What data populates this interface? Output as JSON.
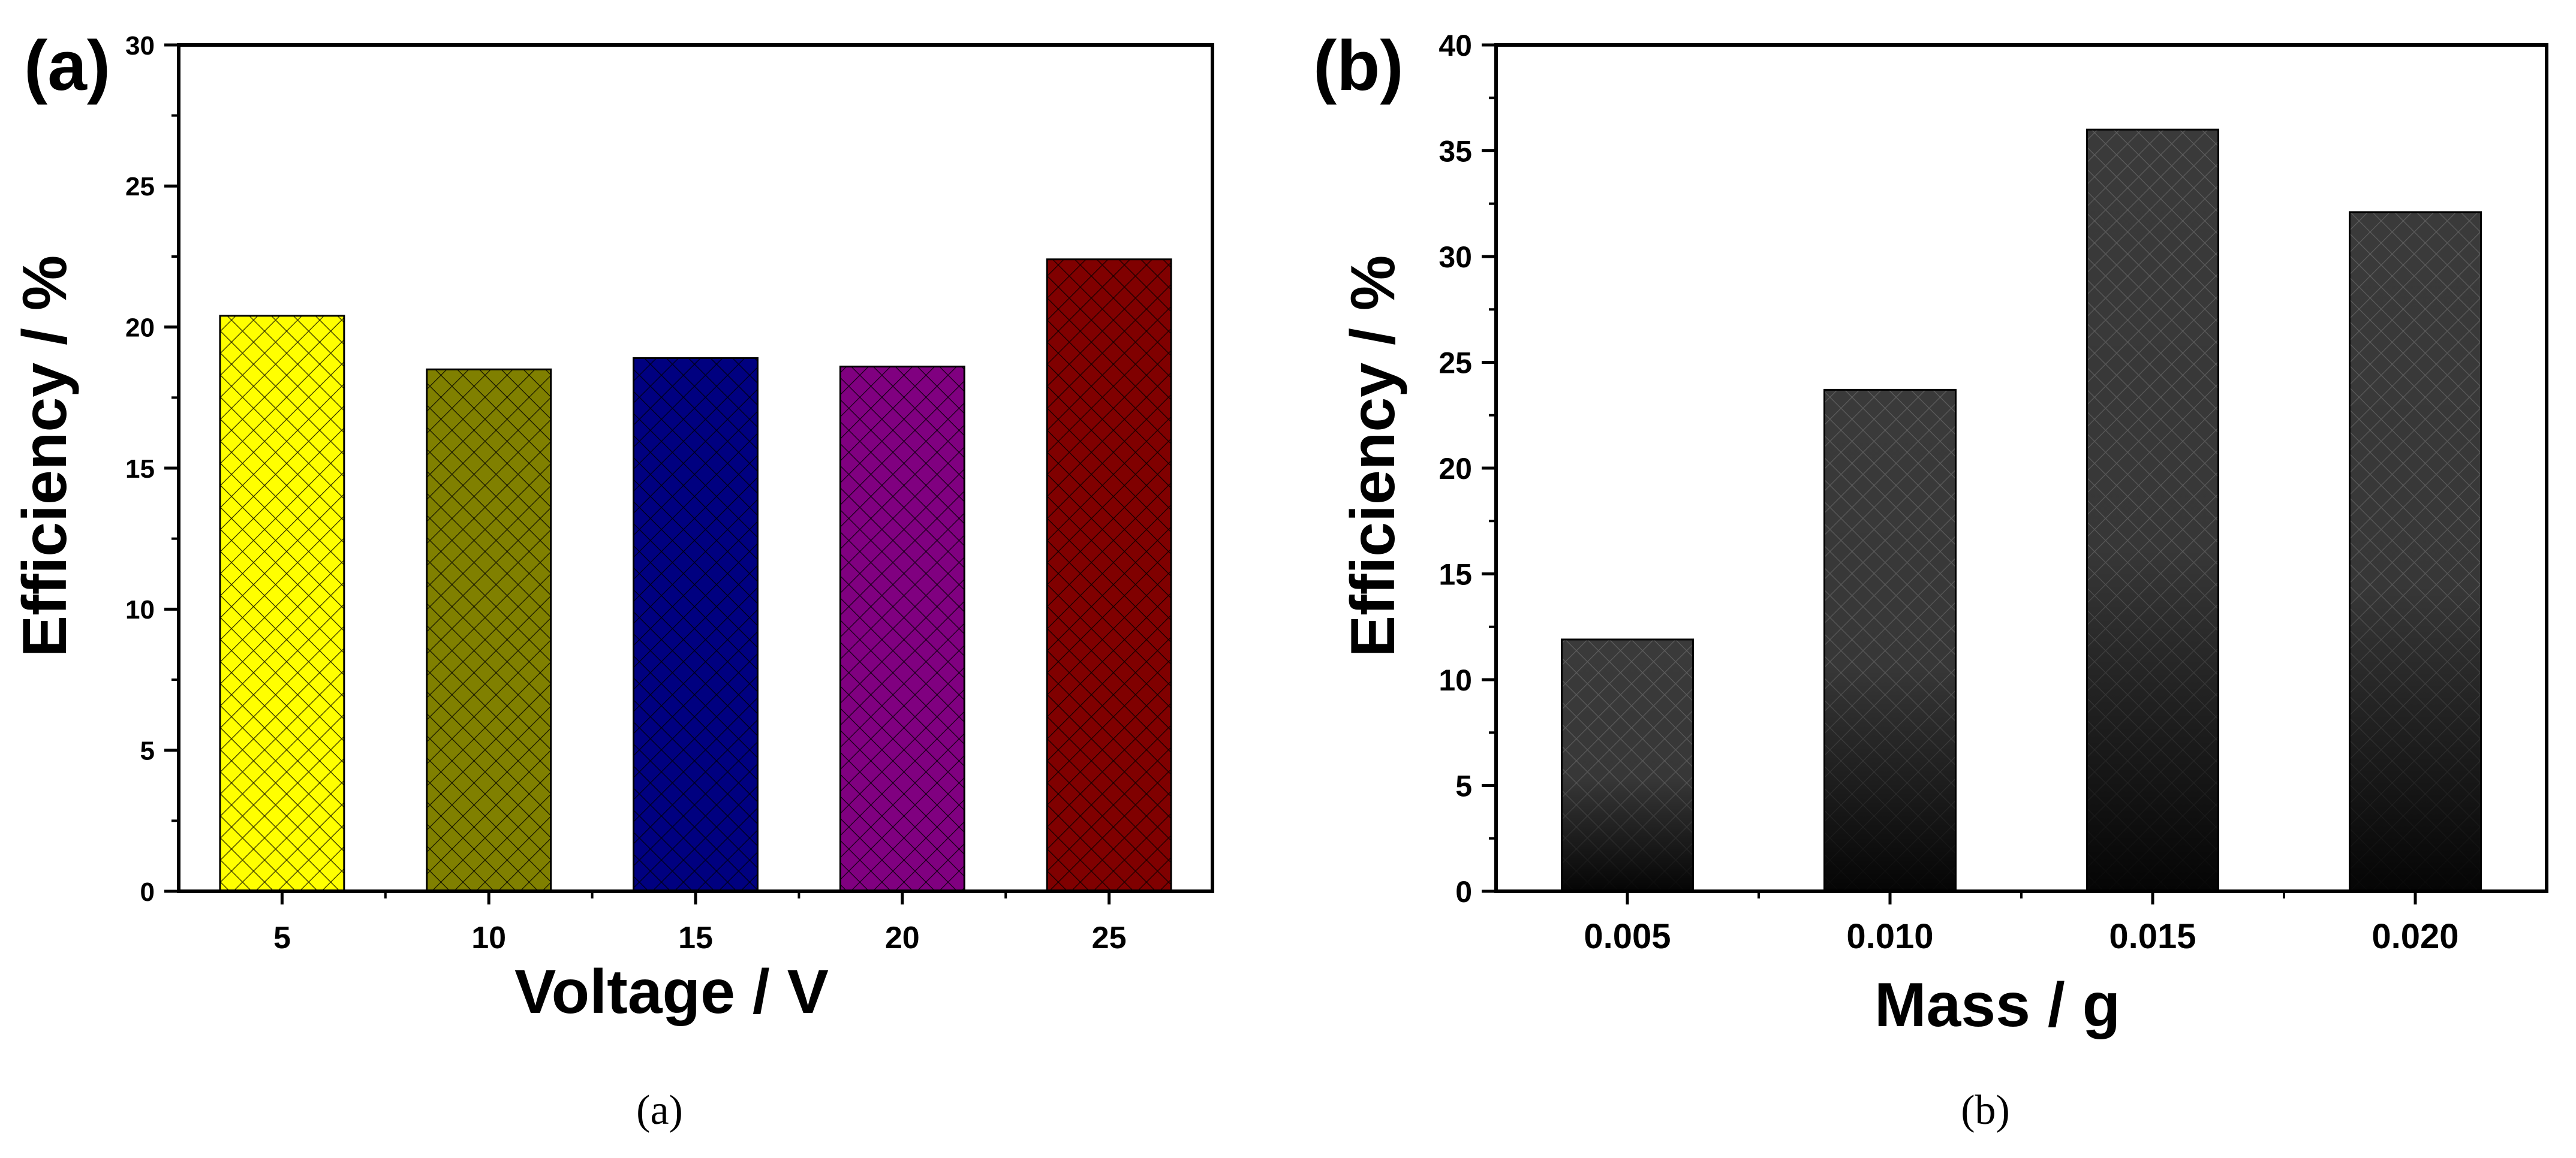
{
  "chart_data": [
    {
      "type": "bar",
      "panel_label": "(a)",
      "caption": "(a)",
      "xlabel": "Voltage / V",
      "ylabel": "Efficiency / %",
      "categories": [
        "5",
        "10",
        "15",
        "20",
        "25"
      ],
      "values": [
        20.4,
        18.5,
        18.9,
        18.6,
        22.4
      ],
      "colors": [
        "#FFFF00",
        "#808000",
        "#000080",
        "#800080",
        "#800000"
      ],
      "ylim": [
        0,
        30
      ],
      "yticks": [
        "0",
        "5",
        "10",
        "15",
        "20",
        "25",
        "30"
      ],
      "pattern": "crosshatch",
      "grid": false
    },
    {
      "type": "bar",
      "panel_label": "(b)",
      "caption": "(b)",
      "xlabel": "Mass / g",
      "ylabel": "Efficiency / %",
      "categories": [
        "0.005",
        "0.010",
        "0.015",
        "0.020"
      ],
      "values": [
        11.9,
        23.7,
        36.0,
        32.1
      ],
      "colors": [
        "#3a3a3a",
        "#3a3a3a",
        "#3a3a3a",
        "#3a3a3a"
      ],
      "ylim": [
        0,
        40
      ],
      "yticks": [
        "0",
        "5",
        "10",
        "15",
        "20",
        "25",
        "30",
        "35",
        "40"
      ],
      "pattern": "crosshatch-gradient",
      "grid": false
    }
  ]
}
